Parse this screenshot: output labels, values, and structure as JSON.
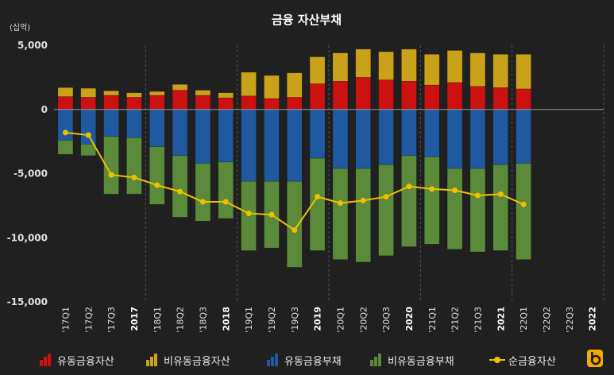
{
  "chart_data": {
    "type": "bar",
    "title": "금융 자산부채",
    "unit_label": "(십억)",
    "ylim": [
      -15000,
      5000
    ],
    "y_ticks": [
      "5,000",
      "0",
      "-5,000",
      "-10,000",
      "-15,000"
    ],
    "y_tick_values": [
      5000,
      0,
      -5000,
      -10000,
      -15000
    ],
    "categories": [
      "'17Q1",
      "'17Q2",
      "'17Q3",
      "2017",
      "'18Q1",
      "'18Q2",
      "'18Q3",
      "2018",
      "'19Q1",
      "'19Q2",
      "'19Q3",
      "2019",
      "'20Q1",
      "'20Q2",
      "'20Q3",
      "2020",
      "'21Q1",
      "'21Q2",
      "'21Q3",
      "2021",
      "'22Q1",
      "'22Q2",
      "'22Q3",
      "2022"
    ],
    "bold_categories": [
      "2017",
      "2018",
      "2019",
      "2020",
      "2021",
      "2022"
    ],
    "series": [
      {
        "name": "유동금융자산",
        "type": "stacked-bar",
        "color": "#cc1111",
        "values": [
          1000,
          950,
          1100,
          950,
          1100,
          1500,
          1100,
          900,
          1050,
          850,
          950,
          2000,
          2200,
          2500,
          2300,
          2200,
          1900,
          2100,
          1800,
          1700,
          1600,
          null,
          null,
          null
        ]
      },
      {
        "name": "비유동금융자산",
        "type": "stacked-bar",
        "color": "#c9a21a",
        "values": [
          700,
          700,
          350,
          350,
          300,
          450,
          400,
          400,
          1850,
          1800,
          1900,
          2100,
          2200,
          2200,
          2200,
          2500,
          2400,
          2500,
          2600,
          2600,
          2700,
          null,
          null,
          null
        ]
      },
      {
        "name": "유동금융부채",
        "type": "stacked-bar",
        "color": "#1f5aa0",
        "values": [
          -2400,
          -2700,
          -2100,
          -2200,
          -2900,
          -3600,
          -4200,
          -4100,
          -5600,
          -5600,
          -5600,
          -3800,
          -4600,
          -4600,
          -4300,
          -3600,
          -3700,
          -4600,
          -4600,
          -4300,
          -4200,
          null,
          null,
          null
        ]
      },
      {
        "name": "비유동금융부채",
        "type": "stacked-bar",
        "color": "#5a8a3a",
        "values": [
          -1100,
          -900,
          -4500,
          -4400,
          -4500,
          -4800,
          -4500,
          -4400,
          -5400,
          -5200,
          -6700,
          -7200,
          -7100,
          -7300,
          -7100,
          -7100,
          -6800,
          -6300,
          -6500,
          -6700,
          -7500,
          null,
          null,
          null
        ]
      },
      {
        "name": "순금융자산",
        "type": "line",
        "color": "#f0c000",
        "values": [
          -1800,
          -2000,
          -5100,
          -5300,
          -5900,
          -6400,
          -7200,
          -7200,
          -8100,
          -8200,
          -9400,
          -6800,
          -7300,
          -7100,
          -6800,
          -6000,
          -6200,
          -6300,
          -6700,
          -6600,
          -7400,
          null,
          null,
          null
        ]
      }
    ],
    "legend_position": "bottom",
    "grid": false
  }
}
